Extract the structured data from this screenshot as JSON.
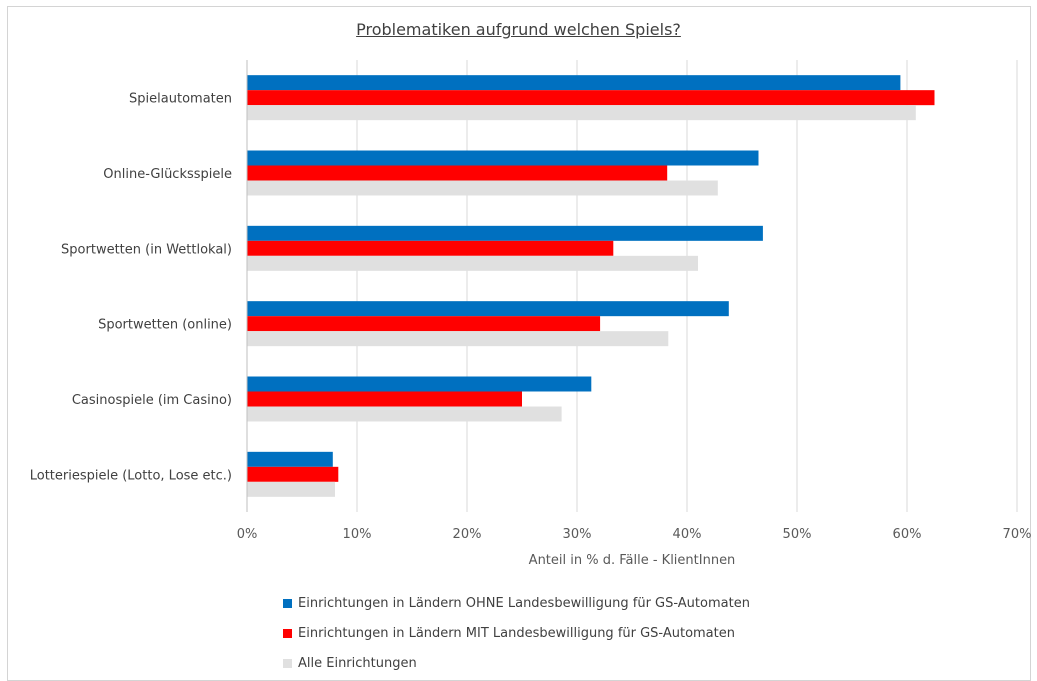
{
  "chart_data": {
    "type": "bar",
    "orientation": "horizontal",
    "title": "Problematiken aufgrund welchen Spiels?",
    "xlabel": "Anteil in % d. Fälle - KlientInnen",
    "ylabel": "",
    "xlim": [
      0,
      70
    ],
    "x_ticks": [
      "0%",
      "10%",
      "20%",
      "30%",
      "40%",
      "50%",
      "60%",
      "70%"
    ],
    "grid": "vertical",
    "legend_position": "bottom",
    "categories": [
      "Spielautomaten",
      "Online-Glücksspiele",
      "Sportwetten (in Wettlokal)",
      "Sportwetten (online)",
      "Casinospiele (im Casino)",
      "Lotteriespiele (Lotto, Lose etc.)"
    ],
    "series": [
      {
        "name": "Einrichtungen in Ländern OHNE Landesbewilligung für GS-Automaten",
        "color": "#0070c0",
        "values": [
          59.4,
          46.5,
          46.9,
          43.8,
          31.3,
          7.8
        ]
      },
      {
        "name": "Einrichtungen in Ländern MIT Landesbewilligung für GS-Automaten",
        "color": "#ff0000",
        "values": [
          62.5,
          38.2,
          33.3,
          32.1,
          25.0,
          8.3
        ]
      },
      {
        "name": "Alle Einrichtungen",
        "color": "#e0e0e0",
        "values": [
          60.8,
          42.8,
          41.0,
          38.3,
          28.6,
          8.0
        ]
      }
    ]
  }
}
